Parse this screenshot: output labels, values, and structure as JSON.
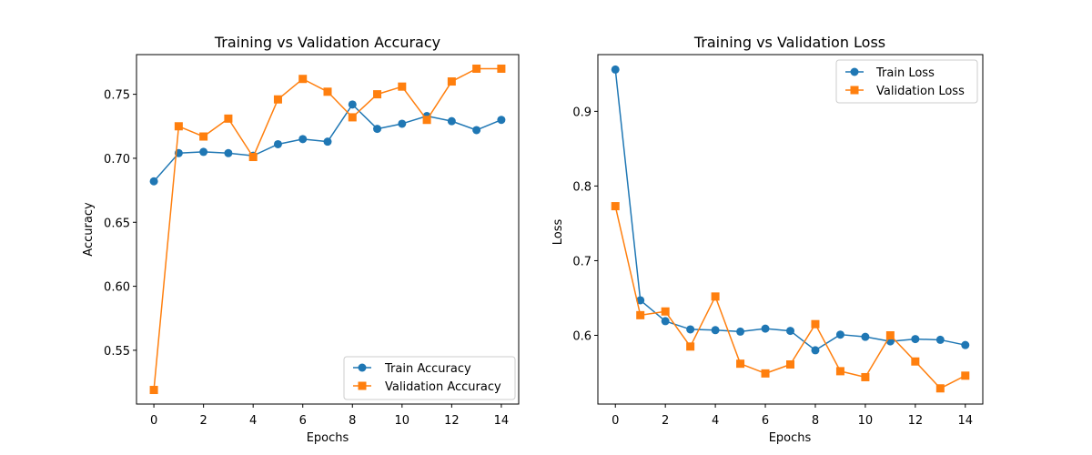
{
  "colors": {
    "train": "#1f77b4",
    "validation": "#ff7f0e"
  },
  "chart_data": [
    {
      "type": "line",
      "title": "Training vs Validation Accuracy",
      "xlabel": "Epochs",
      "ylabel": "Accuracy",
      "xlim": [
        -0.7,
        14.7
      ],
      "ylim": [
        0.508,
        0.781
      ],
      "xticks": [
        0,
        2,
        4,
        6,
        8,
        10,
        12,
        14
      ],
      "xtick_labels": [
        "0",
        "2",
        "4",
        "6",
        "8",
        "10",
        "12",
        "14"
      ],
      "yticks": [
        0.55,
        0.6,
        0.65,
        0.7,
        0.75
      ],
      "ytick_labels": [
        "0.55",
        "0.60",
        "0.65",
        "0.70",
        "0.75"
      ],
      "grid": false,
      "legend_position": "lower-right",
      "x": [
        0,
        1,
        2,
        3,
        4,
        5,
        6,
        7,
        8,
        9,
        10,
        11,
        12,
        13,
        14
      ],
      "series": [
        {
          "name": "Train Accuracy",
          "marker": "circle",
          "color": "#1f77b4",
          "values": [
            0.682,
            0.704,
            0.705,
            0.704,
            0.702,
            0.711,
            0.715,
            0.713,
            0.742,
            0.723,
            0.727,
            0.733,
            0.729,
            0.722,
            0.73
          ]
        },
        {
          "name": "Validation Accuracy",
          "marker": "square",
          "color": "#ff7f0e",
          "values": [
            0.519,
            0.725,
            0.717,
            0.731,
            0.701,
            0.746,
            0.762,
            0.752,
            0.732,
            0.75,
            0.756,
            0.73,
            0.76,
            0.77,
            0.77
          ]
        }
      ]
    },
    {
      "type": "line",
      "title": "Training vs Validation Loss",
      "xlabel": "Epochs",
      "ylabel": "Loss",
      "xlim": [
        -0.7,
        14.7
      ],
      "ylim": [
        0.508,
        0.976
      ],
      "xticks": [
        0,
        2,
        4,
        6,
        8,
        10,
        12,
        14
      ],
      "xtick_labels": [
        "0",
        "2",
        "4",
        "6",
        "8",
        "10",
        "12",
        "14"
      ],
      "yticks": [
        0.6,
        0.7,
        0.8,
        0.9
      ],
      "ytick_labels": [
        "0.6",
        "0.7",
        "0.8",
        "0.9"
      ],
      "grid": false,
      "legend_position": "upper-right",
      "x": [
        0,
        1,
        2,
        3,
        4,
        5,
        6,
        7,
        8,
        9,
        10,
        11,
        12,
        13,
        14
      ],
      "series": [
        {
          "name": "Train Loss",
          "marker": "circle",
          "color": "#1f77b4",
          "values": [
            0.956,
            0.647,
            0.619,
            0.608,
            0.607,
            0.605,
            0.609,
            0.606,
            0.58,
            0.601,
            0.598,
            0.592,
            0.595,
            0.594,
            0.587
          ]
        },
        {
          "name": "Validation Loss",
          "marker": "square",
          "color": "#ff7f0e",
          "values": [
            0.773,
            0.627,
            0.632,
            0.585,
            0.652,
            0.562,
            0.549,
            0.561,
            0.615,
            0.552,
            0.544,
            0.6,
            0.565,
            0.529,
            0.546
          ]
        }
      ]
    }
  ]
}
